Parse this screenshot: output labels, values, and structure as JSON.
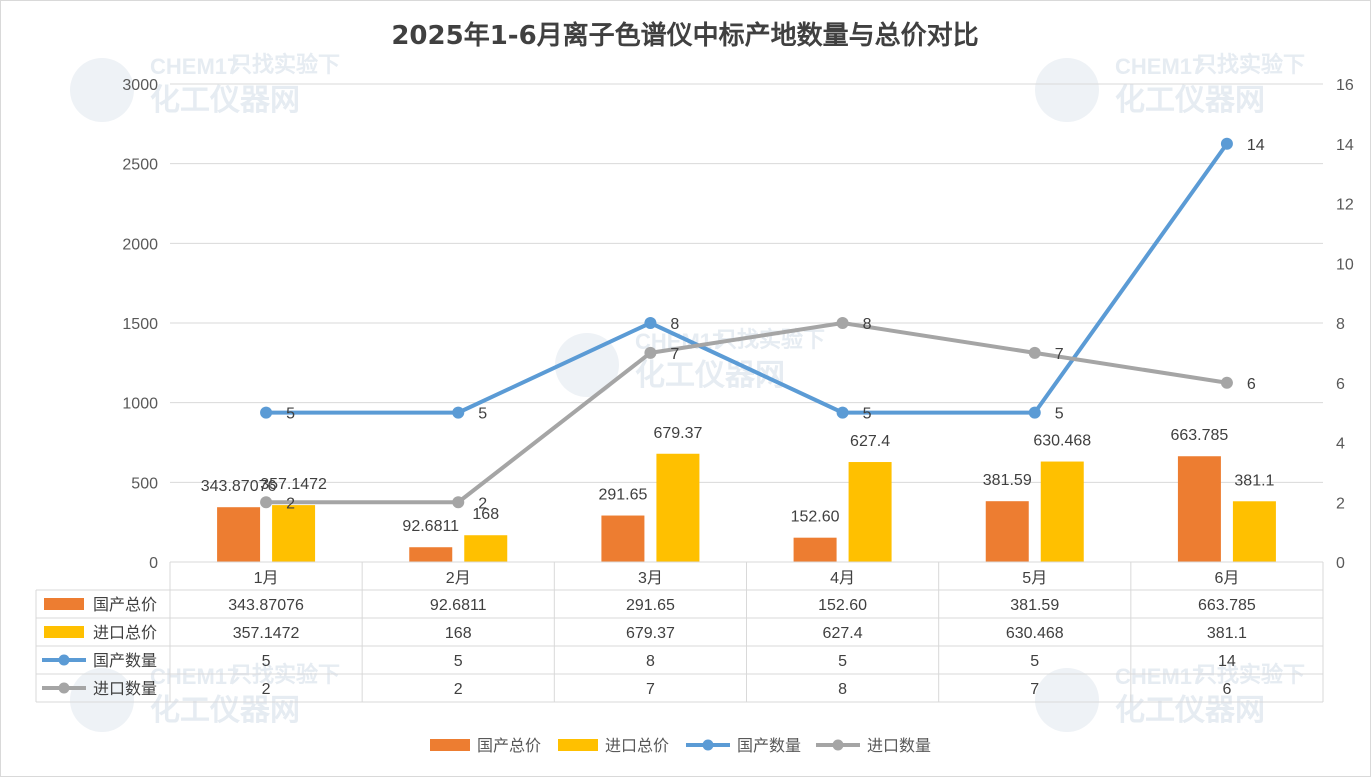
{
  "watermark": {
    "brand": "CHEM17",
    "slogan": "只找实验下",
    "cn": "化工仪器网"
  },
  "chart_data": {
    "type": "bar",
    "title": "2025年1-6月离子色谱仪中标产地数量与总价对比",
    "categories": [
      "1月",
      "2月",
      "3月",
      "4月",
      "5月",
      "6月"
    ],
    "y_left": {
      "range": [
        0,
        3000
      ],
      "ticks": [
        "0",
        "500",
        "1000",
        "1500",
        "2000",
        "2500",
        "3000"
      ]
    },
    "y_right": {
      "range": [
        0,
        16
      ],
      "ticks": [
        "0",
        "2",
        "4",
        "6",
        "8",
        "10",
        "12",
        "14",
        "16"
      ]
    },
    "grid": true,
    "legend_position": "bottom",
    "data_table": true,
    "series": [
      {
        "name": "国产总价",
        "kind": "bar",
        "axis": "left",
        "color": "#ED7D31",
        "values": [
          343.87076,
          92.6811,
          291.65,
          152.6,
          381.59,
          663.785
        ],
        "labels": [
          "343.87076",
          "92.6811",
          "291.65",
          "152.60",
          "381.59",
          "663.785"
        ]
      },
      {
        "name": "进口总价",
        "kind": "bar",
        "axis": "left",
        "color": "#FFC000",
        "values": [
          357.1472,
          168,
          679.37,
          627.4,
          630.468,
          381.1
        ],
        "labels": [
          "357.1472",
          "168",
          "679.37",
          "627.4",
          "630.468",
          "381.1"
        ]
      },
      {
        "name": "国产数量",
        "kind": "line",
        "axis": "right",
        "color": "#5B9BD5",
        "values": [
          5,
          5,
          8,
          5,
          5,
          14
        ],
        "labels": [
          "5",
          "5",
          "8",
          "5",
          "5",
          "14"
        ]
      },
      {
        "name": "进口数量",
        "kind": "line",
        "axis": "right",
        "color": "#A5A5A5",
        "values": [
          2,
          2,
          7,
          8,
          7,
          6
        ],
        "labels": [
          "2",
          "2",
          "7",
          "8",
          "7",
          "6"
        ]
      }
    ]
  }
}
